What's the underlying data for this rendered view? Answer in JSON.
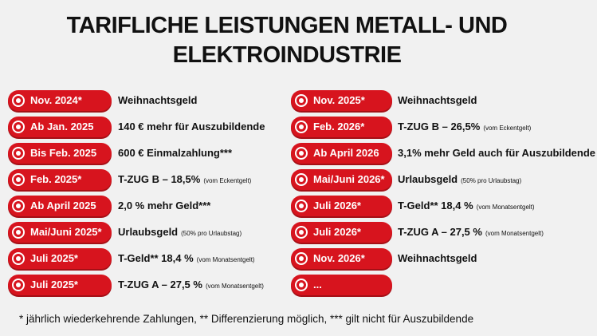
{
  "title": {
    "line1": "TARIFLICHE LEISTUNGEN METALL- UND",
    "line2": "ELEKTROINDUSTRIE"
  },
  "left": [
    {
      "label": "Nov. 2024*",
      "text": "Weihnachtsgeld"
    },
    {
      "label": "Ab Jan. 2025",
      "text": "140 € mehr für Auszubildende"
    },
    {
      "label": "Bis Feb. 2025",
      "text": "600 € Einmalzahlung***"
    },
    {
      "label": "Feb. 2025*",
      "text": "T-ZUG B – 18,5%",
      "note": "(vom Eckentgelt)"
    },
    {
      "label": "Ab April 2025",
      "text": "2,0 % mehr Geld***"
    },
    {
      "label": "Mai/Juni 2025*",
      "text": "Urlaubsgeld",
      "note": "(50% pro Urlaubstag)"
    },
    {
      "label": "Juli 2025*",
      "text": "T-Geld** 18,4 %",
      "note": "(vom Monatsentgelt)"
    },
    {
      "label": "Juli 2025*",
      "text": "T-ZUG A – 27,5 %",
      "note": "(vom Monatsentgelt)"
    }
  ],
  "right": [
    {
      "label": "Nov. 2025*",
      "text": "Weihnachtsgeld"
    },
    {
      "label": "Feb. 2026*",
      "text": "T-ZUG B – 26,5%",
      "note": "(vom Eckentgelt)"
    },
    {
      "label": "Ab April 2026",
      "text": "3,1% mehr Geld auch für Auszubildende"
    },
    {
      "label": "Mai/Juni 2026*",
      "text": "Urlaubsgeld",
      "note": "(50% pro Urlaubstag)"
    },
    {
      "label": "Juli 2026*",
      "text": "T-Geld** 18,4 %",
      "note": "(vom Monatsentgelt)"
    },
    {
      "label": "Juli 2026*",
      "text": "T-ZUG A – 27,5 %",
      "note": "(vom Monatsentgelt)"
    },
    {
      "label": "Nov. 2026*",
      "text": "Weihnachtsgeld"
    },
    {
      "label": "..."
    }
  ],
  "footnote": "* jährlich wiederkehrende Zahlungen, ** Differenzierung möglich, *** gilt nicht für Auszubildende"
}
